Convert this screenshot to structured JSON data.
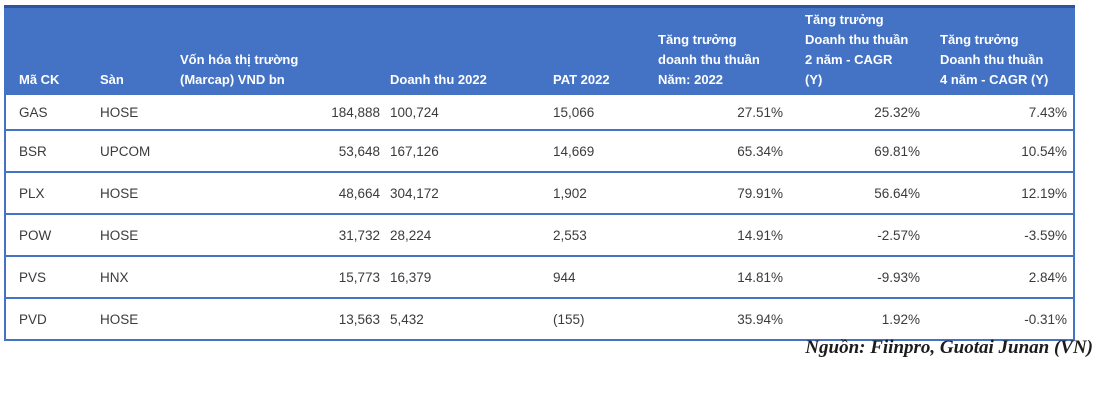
{
  "table": {
    "columns": [
      "Mã CK",
      "Sàn",
      "Vốn hóa thị trường\n(Marcap) VND bn",
      "Doanh thu 2022",
      "PAT 2022",
      "Tăng trưởng\ndoanh thu thuần\nNăm: 2022",
      "Tăng trưởng\nDoanh thu thuần\n2 năm - CAGR\n(Y)",
      "Tăng trưởng\nDoanh thu thuần\n4 năm - CAGR (Y)"
    ],
    "rows": [
      [
        "GAS",
        "HOSE",
        "184,888",
        "100,724",
        "15,066",
        "27.51%",
        "25.32%",
        "7.43%"
      ],
      [
        "BSR",
        "UPCOM",
        "53,648",
        "167,126",
        "14,669",
        "65.34%",
        "69.81%",
        "10.54%"
      ],
      [
        "PLX",
        "HOSE",
        "48,664",
        "304,172",
        "1,902",
        "79.91%",
        "56.64%",
        "12.19%"
      ],
      [
        "POW",
        "HOSE",
        "31,732",
        "28,224",
        "2,553",
        "14.91%",
        "-2.57%",
        "-3.59%"
      ],
      [
        "PVS",
        "HNX",
        "15,773",
        "16,379",
        "944",
        "14.81%",
        "-9.93%",
        "2.84%"
      ],
      [
        "PVD",
        "HOSE",
        "13,563",
        "5,432",
        "(155)",
        "35.94%",
        "1.92%",
        "-0.31%"
      ]
    ]
  },
  "footer": {
    "source_text": "Nguồn: Fiinpro, Guotai Junan (VN)"
  },
  "colors": {
    "header_bg": "#4472C4",
    "header_top_border": "#2E5597",
    "header_text": "#FFFFFF",
    "row_border": "#4472C4",
    "body_text": "#3B3B3B"
  }
}
